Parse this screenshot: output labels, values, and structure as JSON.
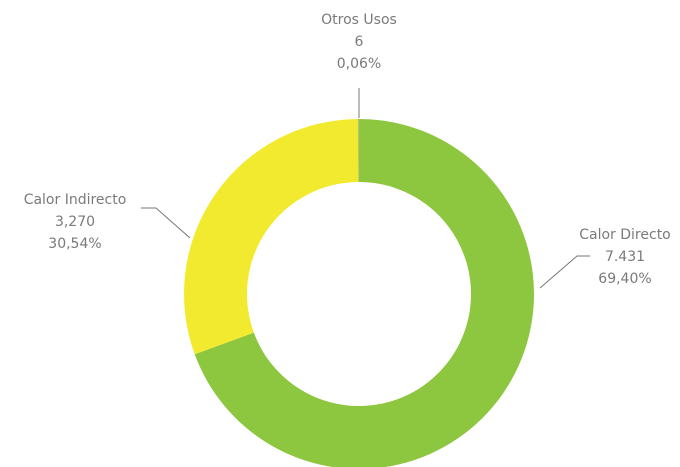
{
  "chart_data": {
    "type": "donut",
    "categories": [
      "Calor Directo",
      "Calor Indirecto",
      "Otros Usos"
    ],
    "values": [
      7431,
      3270,
      6
    ],
    "value_labels": [
      "7.431",
      "3,270",
      "6"
    ],
    "percents": [
      69.4,
      30.54,
      0.06
    ],
    "percent_labels": [
      "69,40%",
      "30,54%",
      "0,06%"
    ],
    "colors": [
      "#8dc63f",
      "#f2ea2e",
      "#9a9a9a"
    ]
  }
}
